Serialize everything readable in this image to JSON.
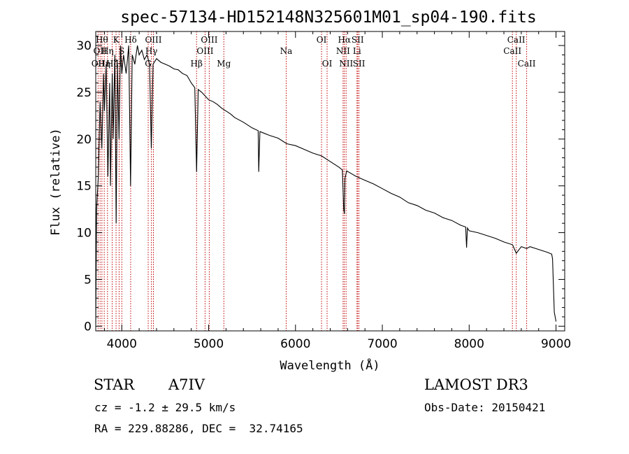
{
  "chart_data": {
    "type": "line",
    "title": "spec-57134-HD152148N325601M01_sp04-190.fits",
    "xlabel": "Wavelength (Å)",
    "ylabel": "Flux (relative)",
    "xlim": [
      3700,
      9100
    ],
    "ylim": [
      -0.5,
      31.5
    ],
    "xticks": [
      4000,
      5000,
      6000,
      7000,
      8000,
      9000
    ],
    "yticks": [
      0,
      5,
      10,
      15,
      20,
      25,
      30
    ],
    "series": [
      {
        "name": "spectrum",
        "x": [
          3700,
          3710,
          3730,
          3750,
          3770,
          3790,
          3800,
          3820,
          3840,
          3860,
          3870,
          3890,
          3900,
          3920,
          3935,
          3950,
          3968,
          3985,
          4000,
          4020,
          4050,
          4080,
          4101,
          4120,
          4150,
          4180,
          4200,
          4230,
          4260,
          4290,
          4320,
          4340,
          4360,
          4400,
          4450,
          4500,
          4550,
          4600,
          4650,
          4700,
          4750,
          4800,
          4840,
          4861,
          4880,
          4920,
          4960,
          5000,
          5050,
          5100,
          5150,
          5200,
          5250,
          5300,
          5400,
          5500,
          5570,
          5577,
          5590,
          5700,
          5800,
          5900,
          6000,
          6100,
          6200,
          6300,
          6400,
          6500,
          6540,
          6555,
          6563,
          6570,
          6590,
          6700,
          6800,
          6900,
          7000,
          7100,
          7200,
          7300,
          7400,
          7500,
          7600,
          7700,
          7800,
          7900,
          7960,
          7970,
          7980,
          8000,
          8100,
          8200,
          8300,
          8400,
          8500,
          8542,
          8600,
          8662,
          8700,
          8800,
          8900,
          8950,
          8960,
          8980,
          9000
        ],
        "y": [
          0.3,
          12.5,
          16,
          24,
          19,
          27,
          23,
          28,
          16,
          26,
          15,
          27,
          20,
          29,
          11,
          28,
          20,
          30,
          27,
          29,
          27,
          30,
          15,
          29,
          28,
          30,
          29,
          29.5,
          28.5,
          29,
          28,
          19,
          28,
          28.6,
          28.2,
          28,
          27.8,
          27.5,
          27.4,
          27,
          26.8,
          26,
          25.5,
          16.5,
          25.3,
          25,
          24.6,
          24.2,
          24,
          23.7,
          23.3,
          23,
          22.7,
          22.3,
          21.8,
          21.2,
          20.9,
          16.5,
          20.8,
          20.4,
          20.1,
          19.5,
          19.3,
          18.9,
          18.5,
          18.2,
          17.6,
          17,
          16.7,
          12.5,
          12,
          15.8,
          16.6,
          16,
          15.6,
          15.2,
          14.7,
          14.2,
          13.8,
          13.2,
          12.9,
          12.4,
          12.1,
          11.6,
          11.3,
          10.8,
          10.6,
          8.4,
          10.5,
          10.2,
          10,
          9.7,
          9.4,
          9,
          8.7,
          7.8,
          8.5,
          8.3,
          8.5,
          8.2,
          7.9,
          7.7,
          7.2,
          1.5,
          0.5
        ]
      }
    ],
    "lines": [
      {
        "wave": 3727,
        "label": "OII",
        "row": 3
      },
      {
        "wave": 3750,
        "label": "OII",
        "row": 2
      },
      {
        "wave": 3771,
        "label": "Hθ",
        "row": 1
      },
      {
        "wave": 3798,
        "label": "Hη",
        "row": 3
      },
      {
        "wave": 3835,
        "label": "Hη",
        "row": 2
      },
      {
        "wave": 3889,
        "label": "Hζ",
        "row": 3
      },
      {
        "wave": 3934,
        "label": "K",
        "row": 1
      },
      {
        "wave": 3969,
        "label": "H",
        "row": 3
      },
      {
        "wave": 4000,
        "label": "S",
        "row": 2
      },
      {
        "wave": 4102,
        "label": "Hδ",
        "row": 1
      },
      {
        "wave": 4304,
        "label": "G",
        "row": 3
      },
      {
        "wave": 4341,
        "label": "Hγ",
        "row": 2
      },
      {
        "wave": 4364,
        "label": "OIII",
        "row": 1
      },
      {
        "wave": 4861,
        "label": "Hβ",
        "row": 3
      },
      {
        "wave": 4959,
        "label": "OIII",
        "row": 2
      },
      {
        "wave": 5007,
        "label": "OIII",
        "row": 1
      },
      {
        "wave": 5175,
        "label": "Mg",
        "row": 3
      },
      {
        "wave": 5893,
        "label": "Na",
        "row": 2
      },
      {
        "wave": 6300,
        "label": "OI",
        "row": 1
      },
      {
        "wave": 6364,
        "label": "OI",
        "row": 3
      },
      {
        "wave": 6548,
        "label": "NII",
        "row": 2
      },
      {
        "wave": 6563,
        "label": "Hα",
        "row": 1
      },
      {
        "wave": 6583,
        "label": "NII",
        "row": 3
      },
      {
        "wave": 6708,
        "label": "Li",
        "row": 2
      },
      {
        "wave": 6716,
        "label": "SII",
        "row": 1
      },
      {
        "wave": 6731,
        "label": "SII",
        "row": 3
      },
      {
        "wave": 8498,
        "label": "CaII",
        "row": 2
      },
      {
        "wave": 8542,
        "label": "CaII",
        "row": 1
      },
      {
        "wave": 8662,
        "label": "CaII",
        "row": 3
      }
    ]
  },
  "info": {
    "class_label": "STAR",
    "subclass": "A7IV",
    "cz_line": "cz = -1.2 ± 29.5 km/s",
    "radec_line": "RA = 229.88286, DEC =  32.74165",
    "survey": "LAMOST DR3",
    "obs_date": "Obs-Date: 20150421"
  }
}
